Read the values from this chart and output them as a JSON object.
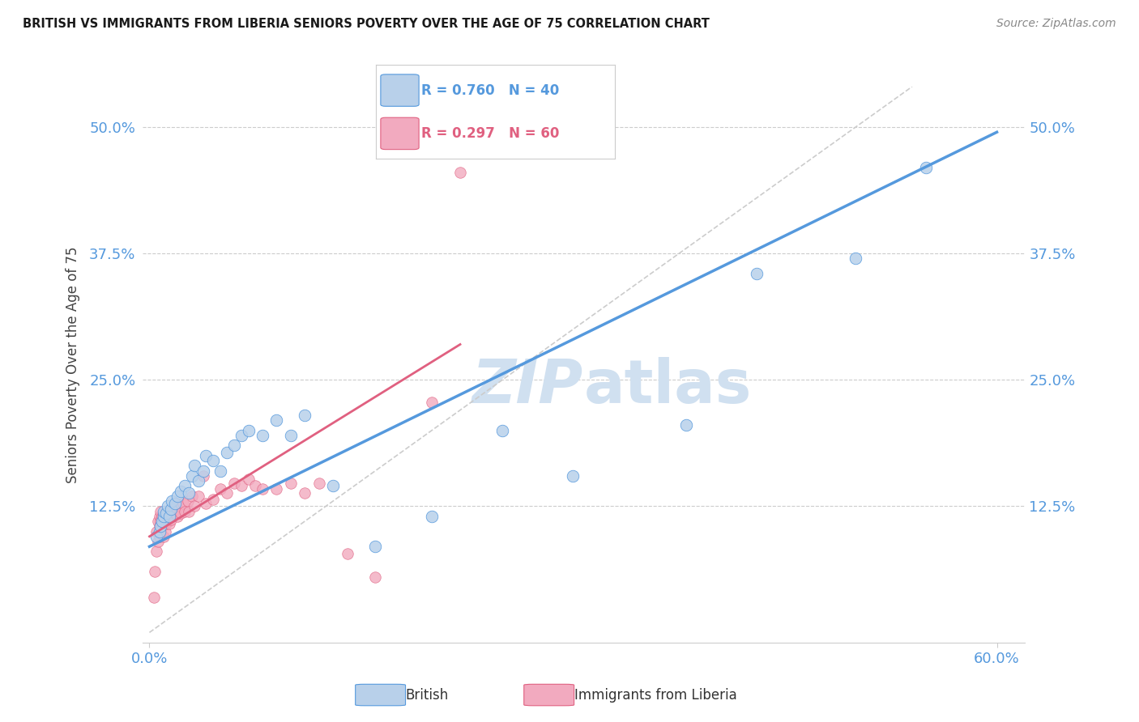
{
  "title": "BRITISH VS IMMIGRANTS FROM LIBERIA SENIORS POVERTY OVER THE AGE OF 75 CORRELATION CHART",
  "source": "Source: ZipAtlas.com",
  "ylabel": "Seniors Poverty Over the Age of 75",
  "ytick_labels": [
    "12.5%",
    "25.0%",
    "37.5%",
    "50.0%"
  ],
  "ytick_values": [
    0.125,
    0.25,
    0.375,
    0.5
  ],
  "xlim": [
    -0.005,
    0.62
  ],
  "ylim": [
    -0.01,
    0.54
  ],
  "british_R": 0.76,
  "british_N": 40,
  "liberia_R": 0.297,
  "liberia_N": 60,
  "british_color": "#b8d0ea",
  "liberia_color": "#f2aabf",
  "british_line_color": "#5599dd",
  "liberia_line_color": "#e06080",
  "diagonal_color": "#cccccc",
  "title_color": "#1a1a1a",
  "source_color": "#888888",
  "tick_color": "#5599dd",
  "grid_color": "#cccccc",
  "legend_blue_text_color": "#5599dd",
  "legend_pink_text_color": "#e06080",
  "watermark_color": "#d0e0f0",
  "background_color": "#ffffff",
  "british_x": [
    0.005,
    0.007,
    0.008,
    0.009,
    0.01,
    0.01,
    0.012,
    0.013,
    0.014,
    0.015,
    0.016,
    0.018,
    0.02,
    0.022,
    0.025,
    0.028,
    0.03,
    0.032,
    0.035,
    0.038,
    0.04,
    0.045,
    0.05,
    0.055,
    0.06,
    0.065,
    0.07,
    0.08,
    0.09,
    0.1,
    0.11,
    0.13,
    0.16,
    0.2,
    0.25,
    0.3,
    0.38,
    0.43,
    0.5,
    0.55
  ],
  "british_y": [
    0.095,
    0.1,
    0.105,
    0.11,
    0.115,
    0.12,
    0.118,
    0.125,
    0.115,
    0.122,
    0.13,
    0.128,
    0.135,
    0.14,
    0.145,
    0.138,
    0.155,
    0.165,
    0.15,
    0.16,
    0.175,
    0.17,
    0.16,
    0.178,
    0.185,
    0.195,
    0.2,
    0.195,
    0.21,
    0.195,
    0.215,
    0.145,
    0.085,
    0.115,
    0.2,
    0.155,
    0.205,
    0.355,
    0.37,
    0.46
  ],
  "liberia_x": [
    0.003,
    0.004,
    0.005,
    0.005,
    0.006,
    0.006,
    0.007,
    0.007,
    0.007,
    0.008,
    0.008,
    0.008,
    0.009,
    0.009,
    0.01,
    0.01,
    0.01,
    0.01,
    0.011,
    0.011,
    0.012,
    0.012,
    0.013,
    0.013,
    0.014,
    0.014,
    0.015,
    0.015,
    0.016,
    0.017,
    0.018,
    0.019,
    0.02,
    0.021,
    0.022,
    0.024,
    0.025,
    0.027,
    0.028,
    0.03,
    0.032,
    0.035,
    0.038,
    0.04,
    0.045,
    0.05,
    0.055,
    0.06,
    0.065,
    0.07,
    0.075,
    0.08,
    0.09,
    0.1,
    0.11,
    0.12,
    0.14,
    0.16,
    0.2,
    0.22
  ],
  "liberia_y": [
    0.035,
    0.06,
    0.08,
    0.1,
    0.09,
    0.11,
    0.095,
    0.105,
    0.115,
    0.1,
    0.11,
    0.12,
    0.105,
    0.115,
    0.095,
    0.108,
    0.112,
    0.118,
    0.1,
    0.115,
    0.108,
    0.118,
    0.11,
    0.12,
    0.108,
    0.118,
    0.112,
    0.122,
    0.115,
    0.12,
    0.118,
    0.128,
    0.115,
    0.125,
    0.118,
    0.128,
    0.12,
    0.13,
    0.12,
    0.135,
    0.125,
    0.135,
    0.155,
    0.128,
    0.132,
    0.142,
    0.138,
    0.148,
    0.145,
    0.152,
    0.145,
    0.142,
    0.142,
    0.148,
    0.138,
    0.148,
    0.078,
    0.055,
    0.228,
    0.455
  ],
  "brit_line_x0": 0.0,
  "brit_line_x1": 0.6,
  "brit_line_y0": 0.085,
  "brit_line_y1": 0.495,
  "lib_line_x0": 0.0,
  "lib_line_x1": 0.22,
  "lib_line_y0": 0.095,
  "lib_line_y1": 0.285
}
